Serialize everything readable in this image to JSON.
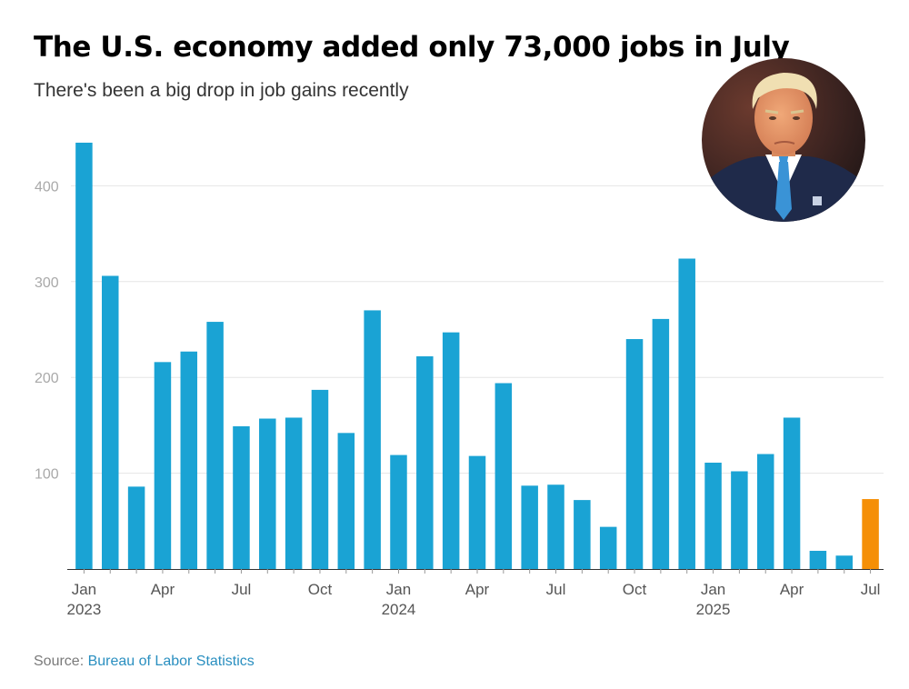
{
  "title": "The U.S. economy added only 73,000 jobs in July",
  "subtitle": "There's been a big drop in job gains recently",
  "source": {
    "label": "Source:",
    "link_text": "Bureau of Labor Statistics"
  },
  "colors": {
    "bar": "#1aa3d4",
    "highlight": "#f58f06",
    "grid": "#e6e6e6",
    "tick": "#a9a9a9",
    "axis_text": "#555555"
  },
  "chart_data": {
    "type": "bar",
    "title": "The U.S. economy added only 73,000 jobs in July",
    "subtitle": "There's been a big drop in job gains recently",
    "xlabel": "",
    "ylabel": "",
    "ylim": [
      0,
      450
    ],
    "yticks": [
      100,
      200,
      300,
      400
    ],
    "grid": true,
    "categories": [
      "Jan 2023",
      "Feb 2023",
      "Mar 2023",
      "Apr 2023",
      "May 2023",
      "Jun 2023",
      "Jul 2023",
      "Aug 2023",
      "Sep 2023",
      "Oct 2023",
      "Nov 2023",
      "Dec 2023",
      "Jan 2024",
      "Feb 2024",
      "Mar 2024",
      "Apr 2024",
      "May 2024",
      "Jun 2024",
      "Jul 2024",
      "Aug 2024",
      "Sep 2024",
      "Oct 2024",
      "Nov 2024",
      "Dec 2024",
      "Jan 2025",
      "Feb 2025",
      "Mar 2025",
      "Apr 2025",
      "May 2025",
      "Jun 2025",
      "Jul 2025"
    ],
    "values": [
      445,
      306,
      86,
      216,
      227,
      258,
      149,
      157,
      158,
      187,
      142,
      270,
      119,
      222,
      247,
      118,
      194,
      87,
      88,
      72,
      44,
      240,
      261,
      324,
      111,
      102,
      120,
      158,
      19,
      14,
      73
    ],
    "highlight_index": 30,
    "xtick_labels": [
      {
        "index": 0,
        "line1": "Jan",
        "line2": "2023"
      },
      {
        "index": 3,
        "line1": "Apr",
        "line2": ""
      },
      {
        "index": 6,
        "line1": "Jul",
        "line2": ""
      },
      {
        "index": 9,
        "line1": "Oct",
        "line2": ""
      },
      {
        "index": 12,
        "line1": "Jan",
        "line2": "2024"
      },
      {
        "index": 15,
        "line1": "Apr",
        "line2": ""
      },
      {
        "index": 18,
        "line1": "Jul",
        "line2": ""
      },
      {
        "index": 21,
        "line1": "Oct",
        "line2": ""
      },
      {
        "index": 24,
        "line1": "Jan",
        "line2": "2025"
      },
      {
        "index": 27,
        "line1": "Apr",
        "line2": ""
      },
      {
        "index": 30,
        "line1": "Jul",
        "line2": ""
      }
    ]
  }
}
